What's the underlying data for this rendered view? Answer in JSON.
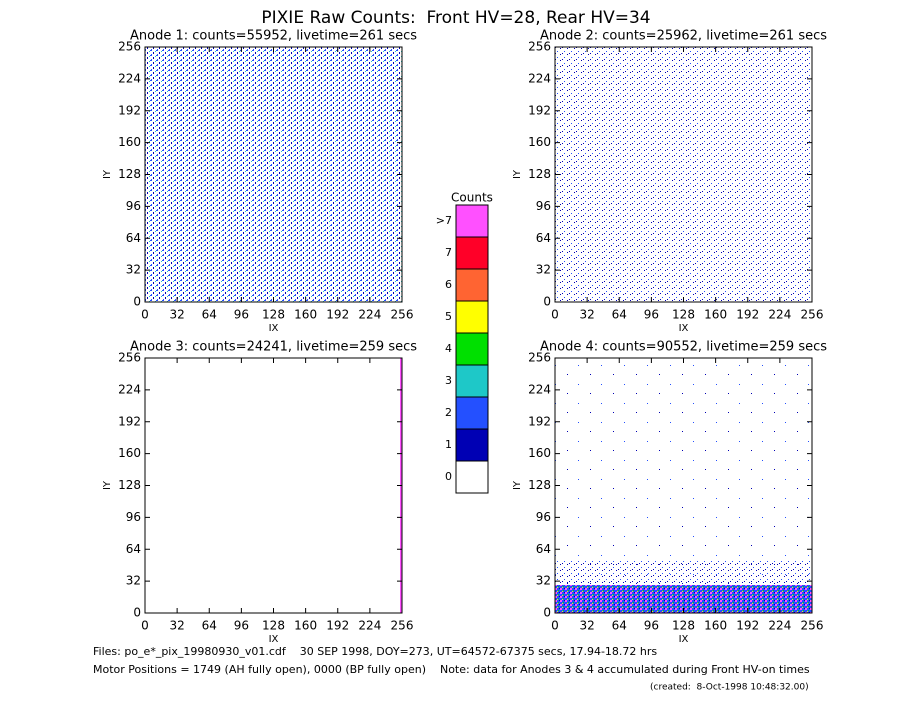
{
  "header": {
    "title": "PIXIE Raw Counts:  Front HV=28, Rear HV=34"
  },
  "chart_data": [
    {
      "type": "heatmap",
      "title": "Anode 1: counts=55952, livetime=261 secs",
      "xlabel": "IX",
      "ylabel": "IY",
      "xlim": [
        0,
        256
      ],
      "ylim": [
        0,
        256
      ],
      "xticks": [
        0,
        32,
        64,
        96,
        128,
        160,
        192,
        224,
        256
      ],
      "yticks": [
        0,
        32,
        64,
        96,
        128,
        160,
        192,
        224,
        256
      ]
    },
    {
      "type": "heatmap",
      "title": "Anode 2: counts=25962, livetime=261 secs",
      "xlabel": "IX",
      "ylabel": "IY",
      "xlim": [
        0,
        256
      ],
      "ylim": [
        0,
        256
      ],
      "xticks": [
        0,
        32,
        64,
        96,
        128,
        160,
        192,
        224,
        256
      ],
      "yticks": [
        0,
        32,
        64,
        96,
        128,
        160,
        192,
        224,
        256
      ]
    },
    {
      "type": "heatmap",
      "title": "Anode 3: counts=24241, livetime=259 secs",
      "xlabel": "IX",
      "ylabel": "IY",
      "xlim": [
        0,
        256
      ],
      "ylim": [
        0,
        256
      ],
      "xticks": [
        0,
        32,
        64,
        96,
        128,
        160,
        192,
        224,
        256
      ],
      "yticks": [
        0,
        32,
        64,
        96,
        128,
        160,
        192,
        224,
        256
      ]
    },
    {
      "type": "heatmap",
      "title": "Anode 4: counts=90552, livetime=259 secs",
      "xlabel": "IX",
      "ylabel": "IY",
      "xlim": [
        0,
        256
      ],
      "ylim": [
        0,
        256
      ],
      "xticks": [
        0,
        32,
        64,
        96,
        128,
        160,
        192,
        224,
        256
      ],
      "yticks": [
        0,
        32,
        64,
        96,
        128,
        160,
        192,
        224,
        256
      ]
    }
  ],
  "colorbar": {
    "title": "Counts",
    "labels": [
      "0",
      "1",
      "2",
      "3",
      "4",
      "5",
      "6",
      "7",
      ">7"
    ],
    "colors": [
      "#ffffff",
      "#0000b4",
      "#2450ff",
      "#1ec8c8",
      "#00e000",
      "#ffff00",
      "#ff6432",
      "#ff0028",
      "#ff50ff"
    ]
  },
  "footer": {
    "files": "Files: po_e*_pix_19980930_v01.cdf    30 SEP 1998, DOY=273, UT=64572-67375 secs, 17.94-18.72 hrs",
    "motor": "Motor Positions = 1749 (AH fully open), 0000 (BP fully open)    Note: data for Anodes 3 & 4 accumulated during Front HV-on times",
    "created": "(created:  8-Oct-1998 10:48:32.00)"
  }
}
